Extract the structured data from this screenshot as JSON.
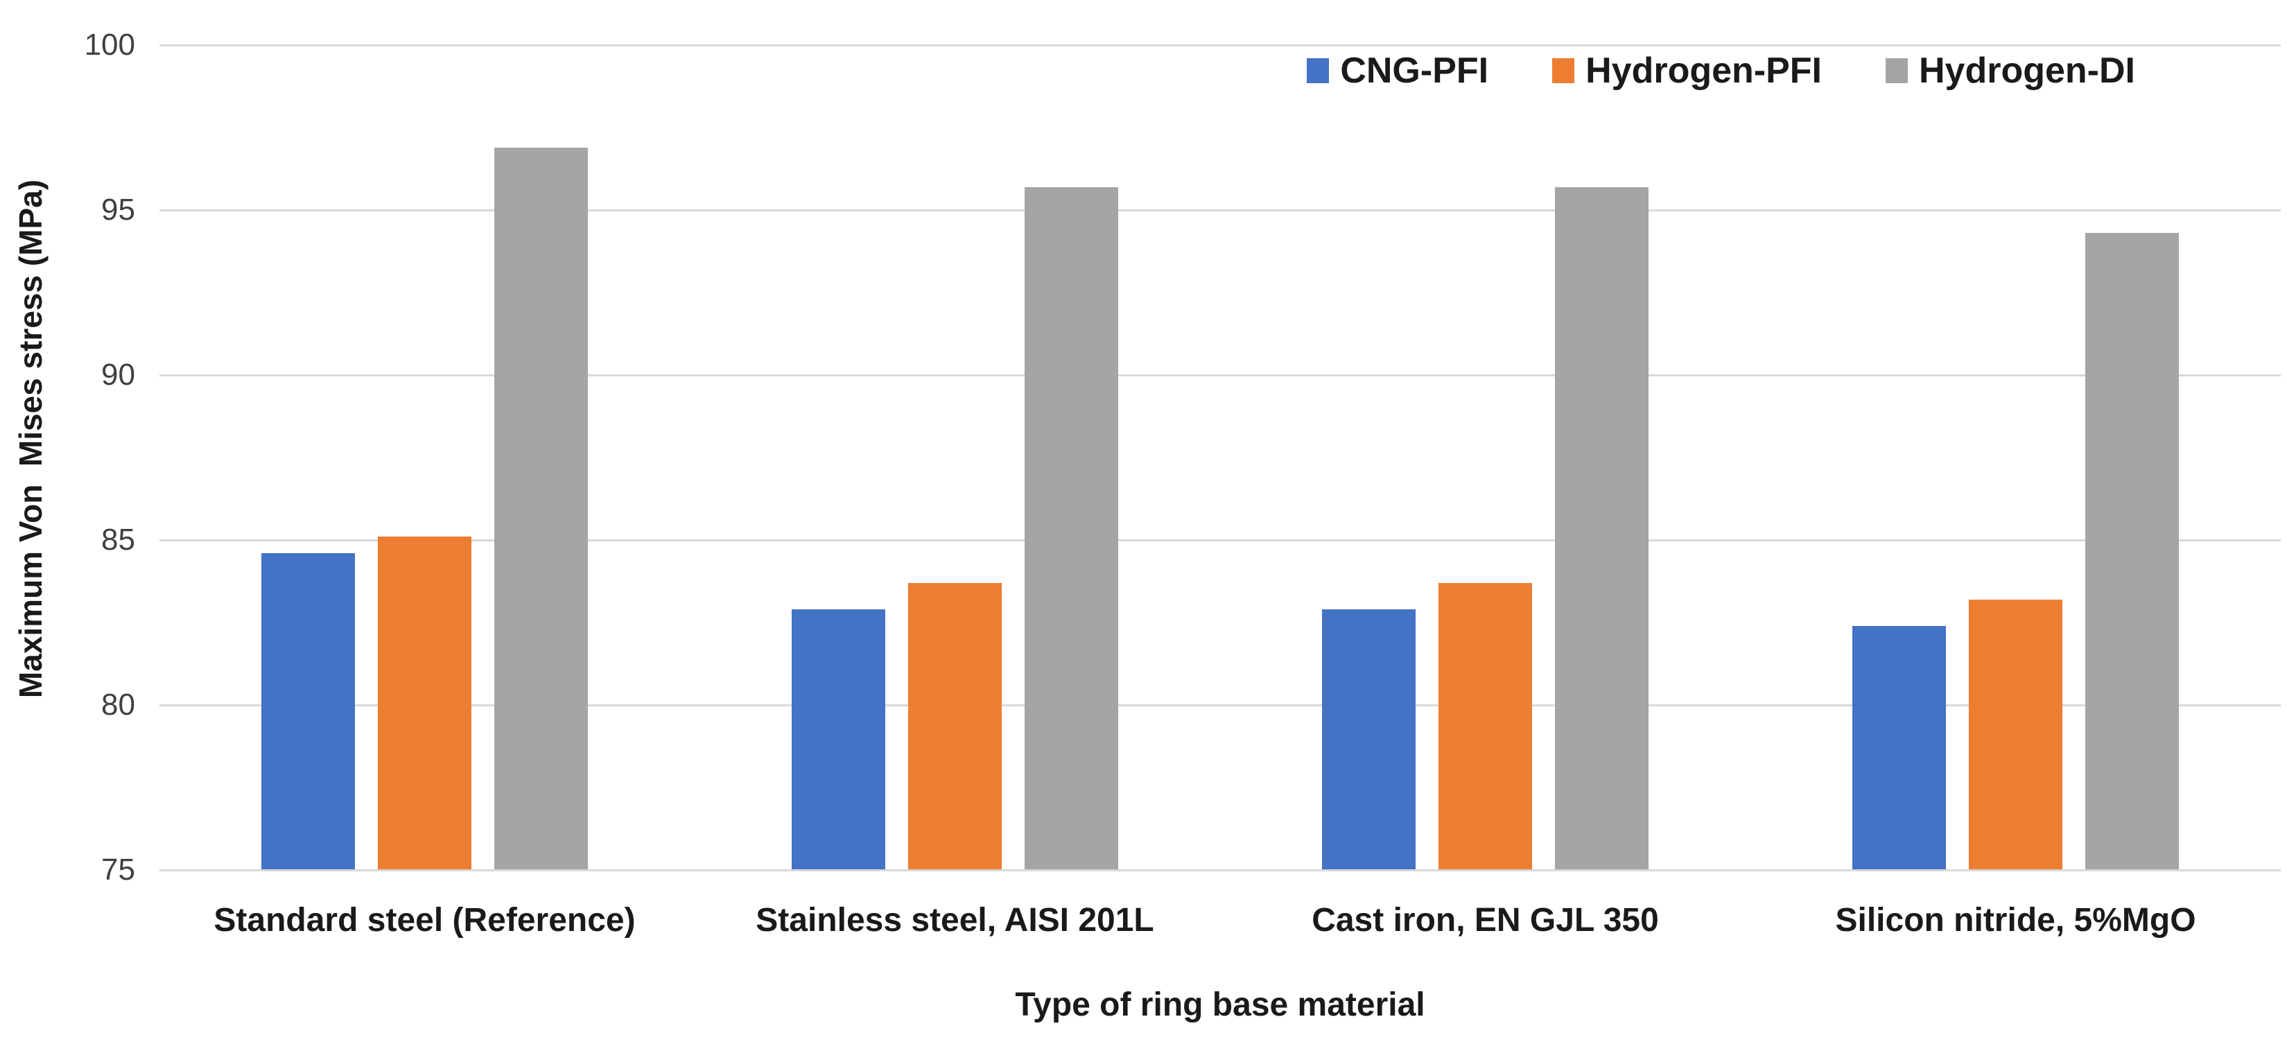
{
  "chart_data": {
    "type": "bar",
    "title": "",
    "xlabel": "Type of ring base material",
    "ylabel": "Maximum Von  Mises stress (MPa)",
    "ylim": [
      75,
      100
    ],
    "ytick_step": 5,
    "yticks": [
      75,
      80,
      85,
      90,
      95,
      100
    ],
    "grid": true,
    "legend_position": "top-right",
    "categories": [
      "Standard steel (Reference)",
      "Stainless steel, AISI 201L",
      "Cast iron, EN GJL 350",
      "Silicon nitride, 5%MgO"
    ],
    "series": [
      {
        "name": "CNG-PFI",
        "color": "#4472C4",
        "values": [
          84.6,
          82.9,
          82.9,
          82.4
        ]
      },
      {
        "name": "Hydrogen-PFI",
        "color": "#ED7D31",
        "values": [
          85.1,
          83.7,
          83.7,
          83.2
        ]
      },
      {
        "name": "Hydrogen-DI",
        "color": "#A5A5A5",
        "values": [
          96.9,
          95.7,
          95.7,
          94.3
        ]
      }
    ]
  },
  "colors": {
    "gridline": "#D9D9D9",
    "tick_text": "#404040",
    "label_text": "#1a1a1a",
    "background": "#ffffff"
  }
}
